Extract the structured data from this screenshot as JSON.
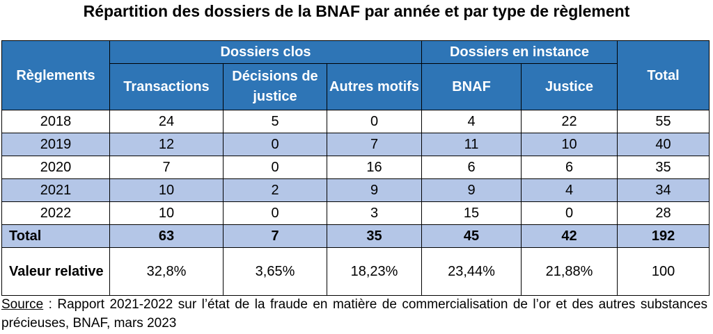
{
  "title": "Répartition des dossiers de la BNAF par année et par type de règlement",
  "table": {
    "header_row1": {
      "reglements": "Règlements",
      "dossiers_clos": "Dossiers clos",
      "dossiers_instance": "Dossiers en instance",
      "total": "Total"
    },
    "header_row2": [
      "Transactions",
      "Décisions de justice",
      "Autres motifs",
      "BNAF",
      "Justice"
    ],
    "rows": [
      {
        "label": "2018",
        "values": [
          "24",
          "5",
          "0",
          "4",
          "22",
          "55"
        ]
      },
      {
        "label": "2019",
        "values": [
          "12",
          "0",
          "7",
          "11",
          "10",
          "40"
        ]
      },
      {
        "label": "2020",
        "values": [
          "7",
          "0",
          "16",
          "6",
          "6",
          "35"
        ]
      },
      {
        "label": "2021",
        "values": [
          "10",
          "2",
          "9",
          "9",
          "4",
          "34"
        ]
      },
      {
        "label": "2022",
        "values": [
          "10",
          "0",
          "3",
          "15",
          "0",
          "28"
        ]
      }
    ],
    "total_row": {
      "label": "Total",
      "values": [
        "63",
        "7",
        "35",
        "45",
        "42",
        "192"
      ]
    },
    "relative_row": {
      "label": "Valeur relative",
      "values": [
        "32,8%",
        "3,65%",
        "18,23%",
        "23,44%",
        "21,88%",
        "100"
      ]
    }
  },
  "source": {
    "label": "Source",
    "text": " : Rapport 2021-2022 sur l’état de la fraude en matière de commercialisation de l’or et des autres substances précieuses, BNAF, mars 2023"
  },
  "colors": {
    "header_bg": "#2e75b6",
    "header_text": "#ffffff",
    "band_bg": "#b4c6e7"
  }
}
